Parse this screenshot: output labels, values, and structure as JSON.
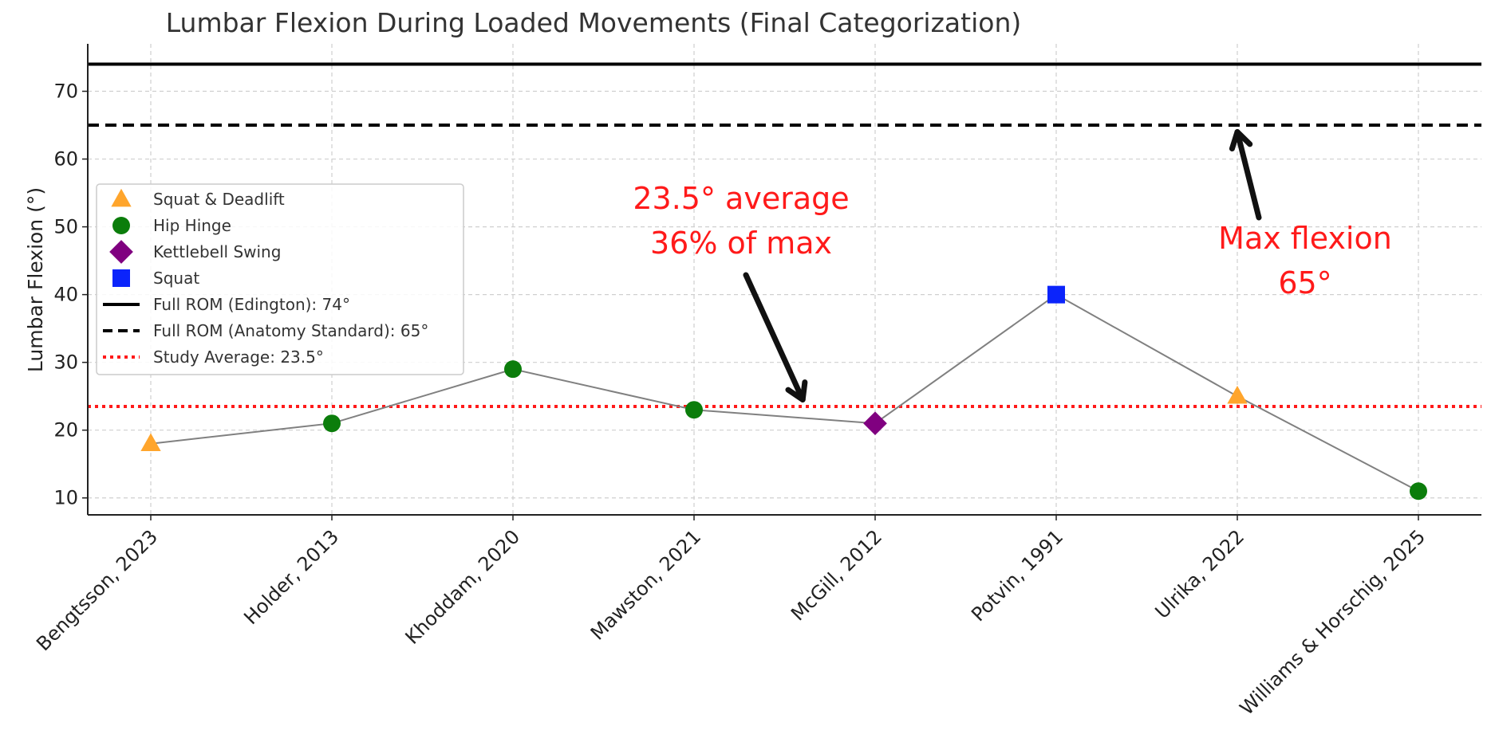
{
  "chart_data": {
    "type": "scatter",
    "title": "Lumbar Flexion During Loaded Movements (Final Categorization)",
    "xlabel": "",
    "ylabel": "Lumbar Flexion (°)",
    "ylim": [
      7.5,
      77
    ],
    "yticks": [
      10,
      20,
      30,
      40,
      50,
      60,
      70
    ],
    "grid": true,
    "legend_position": "center-left",
    "categories": [
      "Bengtsson, 2023",
      "Holder, 2013",
      "Khoddam, 2020",
      "Mawston, 2021",
      "McGill, 2012",
      "Potvin, 1991",
      "Ulrika, 2022",
      "Williams & Horschig, 2025"
    ],
    "values": [
      18,
      21,
      29,
      23,
      21,
      40,
      25,
      11
    ],
    "point_groups": [
      "Squat & Deadlift",
      "Hip Hinge",
      "Hip Hinge",
      "Hip Hinge",
      "Kettlebell Swing",
      "Squat",
      "Squat & Deadlift",
      "Hip Hinge"
    ],
    "connecting_line_color": "#808080",
    "groups": [
      {
        "name": "Squat & Deadlift",
        "marker": "triangle",
        "color": "#ffa52c"
      },
      {
        "name": "Hip Hinge",
        "marker": "circle",
        "color": "#0b7d0b"
      },
      {
        "name": "Kettlebell Swing",
        "marker": "diamond",
        "color": "#800080"
      },
      {
        "name": "Squat",
        "marker": "square",
        "color": "#0b24fb"
      }
    ],
    "reference_lines": [
      {
        "name": "Full ROM (Edington): 74°",
        "value": 74,
        "style": "solid",
        "color": "#000000"
      },
      {
        "name": "Full ROM (Anatomy Standard): 65°",
        "value": 65,
        "style": "dashed",
        "color": "#000000"
      },
      {
        "name": "Study Average: 23.5°",
        "value": 23.5,
        "style": "dotted",
        "color": "#ff1a1a"
      }
    ],
    "annotations": [
      {
        "lines": [
          "23.5°  average",
          "36% of max"
        ],
        "color": "#ff1a1a",
        "arrow_to": {
          "x": 3.6,
          "y": 24.5
        }
      },
      {
        "lines": [
          "Max flexion",
          "65°"
        ],
        "color": "#ff1a1a",
        "arrow_to": {
          "x": 6.0,
          "y": 64
        }
      }
    ]
  }
}
